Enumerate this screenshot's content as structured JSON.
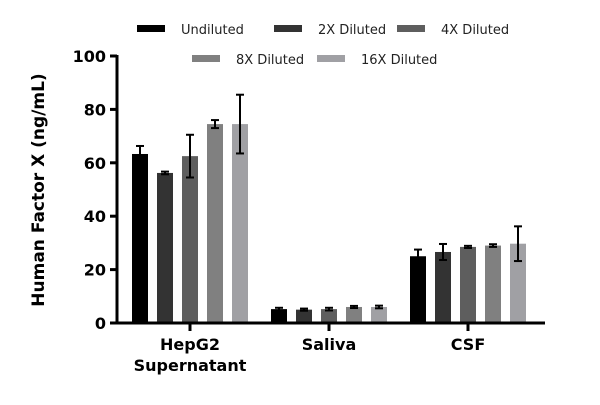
{
  "chart_data": {
    "type": "bar",
    "title": "",
    "xlabel": "",
    "ylabel": "Human Factor X (ng/mL)",
    "ylim": [
      0,
      100
    ],
    "yticks": [
      0,
      20,
      40,
      60,
      80,
      100
    ],
    "grid": false,
    "legend_placement": "top",
    "categories": [
      [
        "HepG2",
        "Supernatant"
      ],
      [
        "Saliva"
      ],
      [
        "CSF"
      ]
    ],
    "series": [
      {
        "name": "Undiluted",
        "color": "#000000",
        "values": [
          63.3,
          5.2,
          25.0
        ],
        "errors": [
          3.0,
          0.5,
          2.5
        ]
      },
      {
        "name": "2X Diluted",
        "color": "#333333",
        "values": [
          56.2,
          5.0,
          26.6
        ],
        "errors": [
          0.5,
          0.4,
          3.0
        ]
      },
      {
        "name": "4X Diluted",
        "color": "#5e5e5e",
        "values": [
          62.5,
          5.2,
          28.5
        ],
        "errors": [
          8.0,
          0.5,
          0.4
        ]
      },
      {
        "name": "8X Diluted",
        "color": "#808080",
        "values": [
          74.5,
          6.0,
          29.0
        ],
        "errors": [
          1.5,
          0.4,
          0.5
        ]
      },
      {
        "name": "16X Diluted",
        "color": "#a0a0a4",
        "values": [
          74.5,
          6.0,
          29.7
        ],
        "errors": [
          11.0,
          0.5,
          6.5
        ]
      }
    ]
  }
}
